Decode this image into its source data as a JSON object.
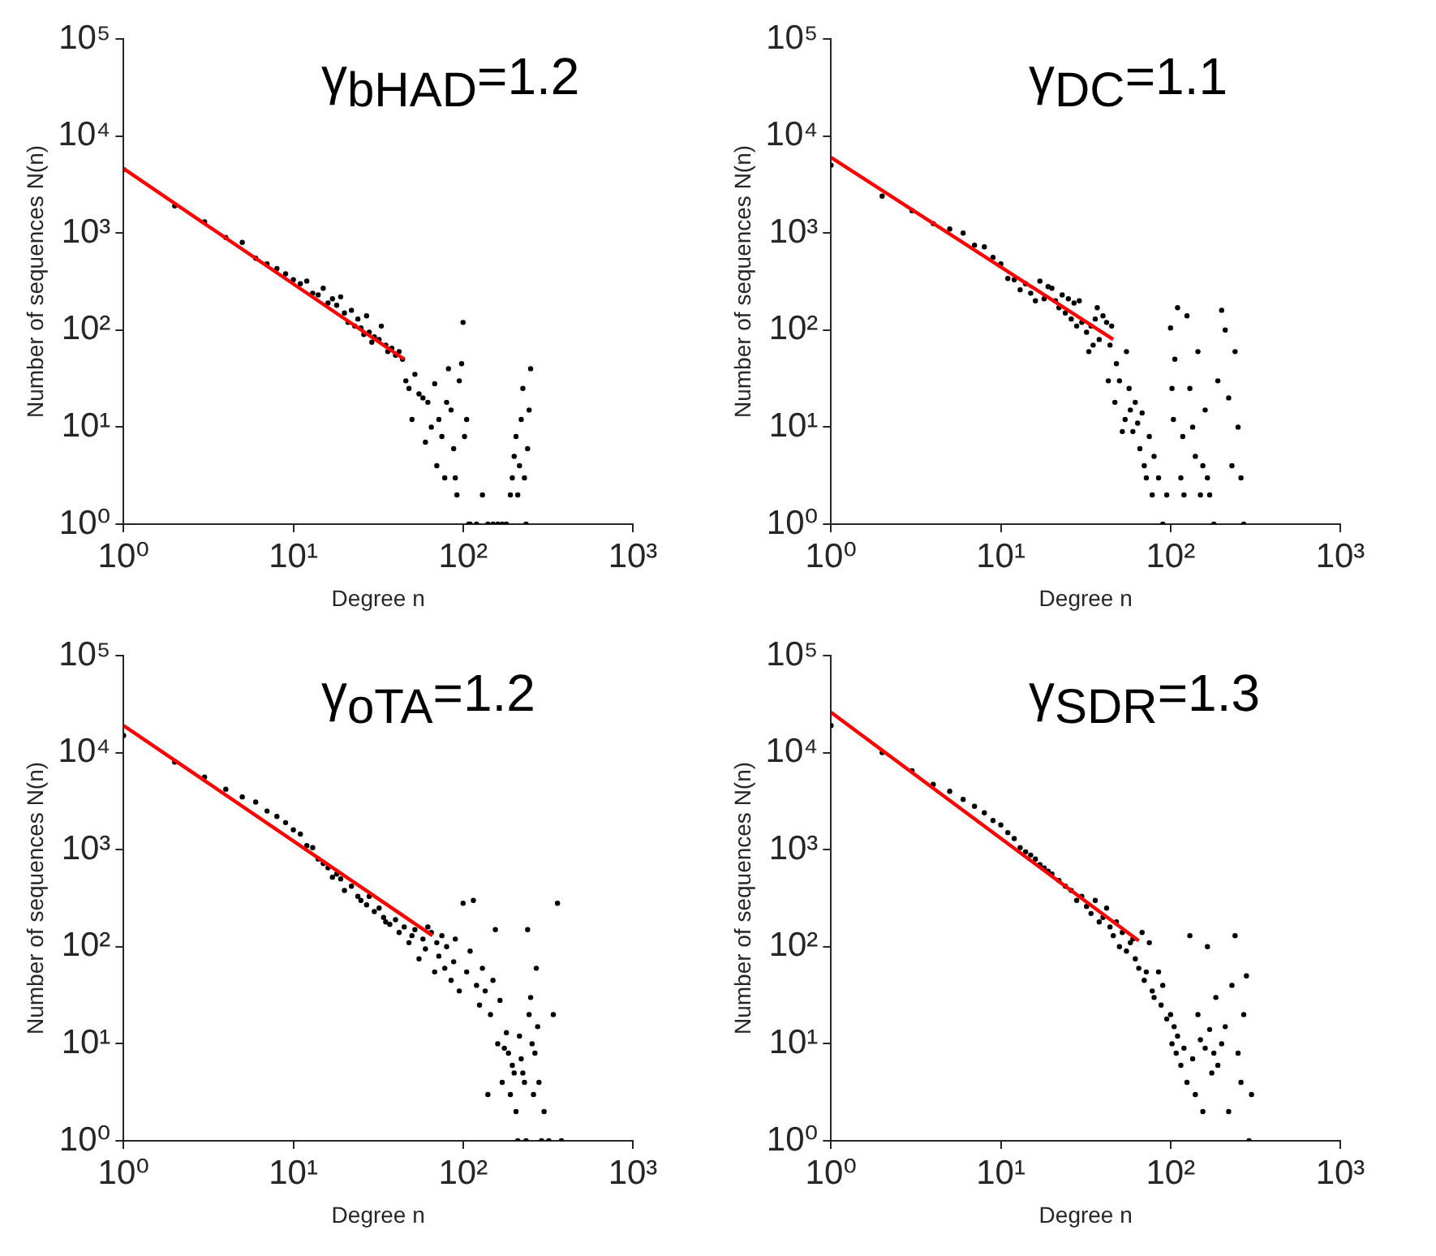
{
  "chart_data": [
    {
      "type": "scatter",
      "annotations": [
        "γ$_{bHAD}$=1.2"
      ],
      "xlabel": "Degree n",
      "ylabel": "Number of sequences N(n)",
      "log": "xy",
      "xlim": [
        1,
        1000
      ],
      "ylim": [
        1,
        100000
      ],
      "xticks": [
        {
          "value": 1,
          "label": "10⁰"
        },
        {
          "value": 10,
          "label": "10¹"
        },
        {
          "value": 100,
          "label": "10²"
        },
        {
          "value": 1000,
          "label": "10³"
        }
      ],
      "yticks": [
        {
          "value": 1,
          "label": "10⁰"
        },
        {
          "value": 10,
          "label": "10¹"
        },
        {
          "value": 100,
          "label": "10²"
        },
        {
          "value": 1000,
          "label": "10³"
        },
        {
          "value": 10000,
          "label": "10⁴"
        },
        {
          "value": 100000,
          "label": "10⁵"
        }
      ],
      "grid": false,
      "legend": false,
      "marker": "circle",
      "series": [
        {
          "color": "#000000",
          "x": [
            1,
            2,
            3,
            4,
            5,
            6,
            7,
            8,
            9,
            10,
            11,
            12,
            13,
            14,
            15,
            16,
            17,
            18,
            19,
            20,
            21,
            22,
            23,
            24,
            25,
            26,
            27,
            28,
            29,
            30,
            32,
            33,
            35,
            36,
            38,
            40,
            42,
            44,
            46,
            48,
            50,
            52,
            55,
            58,
            60,
            62,
            65,
            68,
            70,
            72,
            75,
            78,
            80,
            82,
            85,
            88,
            90,
            92,
            95,
            98,
            100,
            102,
            105,
            108,
            110,
            120,
            130,
            140,
            150,
            160,
            170,
            180,
            190,
            195,
            200,
            205,
            210,
            215,
            220,
            225,
            230,
            235,
            240,
            245,
            250
          ],
          "values": [
            4500,
            1900,
            1300,
            900,
            800,
            550,
            480,
            430,
            380,
            330,
            300,
            320,
            240,
            230,
            270,
            190,
            210,
            180,
            220,
            150,
            120,
            160,
            110,
            130,
            105,
            90,
            140,
            95,
            75,
            85,
            80,
            110,
            70,
            60,
            65,
            55,
            60,
            50,
            30,
            25,
            12,
            35,
            22,
            20,
            7,
            18,
            10,
            28,
            4,
            12,
            8,
            3,
            18,
            40,
            15,
            6,
            3,
            2,
            30,
            45,
            120,
            8,
            12,
            1,
            1,
            1,
            2,
            1,
            1,
            1,
            1,
            1,
            2,
            3,
            5,
            8,
            2,
            4,
            12,
            25,
            3,
            1,
            6,
            15,
            40
          ]
        },
        {
          "type": "line",
          "marker": "none",
          "color": "#ff0000",
          "x": [
            1,
            45
          ],
          "values": [
            4600,
            50
          ]
        }
      ]
    },
    {
      "type": "scatter",
      "annotations": [
        "γ$_{DC}$=1.1"
      ],
      "xlabel": "Degree n",
      "ylabel": "Number of sequences N(n)",
      "log": "xy",
      "xlim": [
        1,
        1000
      ],
      "ylim": [
        1,
        100000
      ],
      "xticks": [
        {
          "value": 1,
          "label": "10⁰"
        },
        {
          "value": 10,
          "label": "10¹"
        },
        {
          "value": 100,
          "label": "10²"
        },
        {
          "value": 1000,
          "label": "10³"
        }
      ],
      "yticks": [
        {
          "value": 1,
          "label": "10⁰"
        },
        {
          "value": 10,
          "label": "10¹"
        },
        {
          "value": 100,
          "label": "10²"
        },
        {
          "value": 1000,
          "label": "10³"
        },
        {
          "value": 10000,
          "label": "10⁴"
        },
        {
          "value": 100000,
          "label": "10⁵"
        }
      ],
      "grid": false,
      "legend": false,
      "marker": "circle",
      "series": [
        {
          "color": "#000000",
          "x": [
            1,
            2,
            3,
            4,
            5,
            6,
            7,
            8,
            9,
            10,
            11,
            12,
            13,
            14,
            15,
            16,
            17,
            18,
            19,
            20,
            21,
            22,
            23,
            24,
            25,
            26,
            27,
            28,
            29,
            30,
            32,
            33,
            34,
            35,
            36,
            37,
            38,
            40,
            42,
            43,
            44,
            45,
            47,
            48,
            50,
            52,
            54,
            55,
            57,
            58,
            60,
            62,
            64,
            66,
            68,
            70,
            72,
            75,
            78,
            80,
            85,
            90,
            95,
            100,
            102,
            104,
            106,
            110,
            115,
            118,
            120,
            125,
            130,
            135,
            140,
            145,
            150,
            155,
            160,
            165,
            170,
            180,
            190,
            200,
            210,
            220,
            230,
            240,
            250,
            260,
            270
          ],
          "values": [
            5000,
            2400,
            1700,
            1250,
            1100,
            1000,
            750,
            720,
            560,
            480,
            340,
            330,
            260,
            300,
            240,
            200,
            320,
            210,
            280,
            270,
            200,
            170,
            230,
            150,
            210,
            130,
            190,
            110,
            200,
            120,
            95,
            60,
            110,
            70,
            130,
            170,
            80,
            140,
            120,
            30,
            70,
            110,
            18,
            45,
            30,
            9,
            12,
            60,
            25,
            15,
            9,
            18,
            11,
            6,
            14,
            4,
            3,
            8,
            2,
            5,
            3,
            1,
            2,
            105,
            25,
            12,
            50,
            170,
            3,
            8,
            2,
            140,
            25,
            10,
            5,
            60,
            2,
            4,
            15,
            3,
            2,
            1,
            30,
            160,
            100,
            20,
            4,
            60,
            10,
            3,
            1
          ]
        },
        {
          "type": "line",
          "marker": "none",
          "color": "#ff0000",
          "x": [
            1,
            46
          ],
          "values": [
            6000,
            80
          ]
        }
      ]
    },
    {
      "type": "scatter",
      "annotations": [
        "γ$_{oTA}$=1.2"
      ],
      "xlabel": "Degree n",
      "ylabel": "Number of sequences N(n)",
      "log": "xy",
      "xlim": [
        1,
        1000
      ],
      "ylim": [
        1,
        100000
      ],
      "xticks": [
        {
          "value": 1,
          "label": "10⁰"
        },
        {
          "value": 10,
          "label": "10¹"
        },
        {
          "value": 100,
          "label": "10²"
        },
        {
          "value": 1000,
          "label": "10³"
        }
      ],
      "yticks": [
        {
          "value": 1,
          "label": "10⁰"
        },
        {
          "value": 10,
          "label": "10¹"
        },
        {
          "value": 100,
          "label": "10²"
        },
        {
          "value": 1000,
          "label": "10³"
        },
        {
          "value": 10000,
          "label": "10⁴"
        },
        {
          "value": 100000,
          "label": "10⁵"
        }
      ],
      "grid": false,
      "legend": false,
      "marker": "circle",
      "series": [
        {
          "color": "#000000",
          "x": [
            1,
            2,
            3,
            4,
            5,
            6,
            7,
            8,
            9,
            10,
            11,
            12,
            13,
            14,
            15,
            16,
            17,
            18,
            19,
            20,
            22,
            24,
            25,
            27,
            28,
            30,
            32,
            34,
            35,
            37,
            40,
            42,
            45,
            48,
            50,
            52,
            55,
            58,
            60,
            62,
            65,
            68,
            70,
            72,
            75,
            78,
            80,
            85,
            88,
            90,
            95,
            100,
            105,
            110,
            115,
            120,
            125,
            130,
            135,
            140,
            145,
            150,
            155,
            160,
            165,
            170,
            175,
            180,
            185,
            190,
            195,
            200,
            205,
            210,
            215,
            220,
            225,
            230,
            235,
            240,
            245,
            250,
            255,
            260,
            265,
            270,
            275,
            280,
            290,
            300,
            320,
            340,
            360,
            380
          ],
          "values": [
            15000,
            8000,
            5600,
            4200,
            3500,
            3100,
            2500,
            2200,
            1900,
            1600,
            1450,
            1100,
            1050,
            800,
            720,
            650,
            520,
            560,
            500,
            380,
            420,
            330,
            300,
            270,
            330,
            230,
            250,
            200,
            180,
            170,
            190,
            140,
            160,
            110,
            130,
            150,
            75,
            120,
            95,
            160,
            140,
            55,
            110,
            80,
            130,
            60,
            100,
            45,
            70,
            120,
            35,
            280,
            55,
            90,
            300,
            40,
            25,
            60,
            35,
            3,
            20,
            45,
            150,
            10,
            28,
            4,
            9,
            13,
            8,
            3,
            6,
            5,
            2,
            1,
            12,
            7,
            5,
            4,
            1,
            150,
            20,
            30,
            10,
            3,
            8,
            60,
            15,
            4,
            1,
            2,
            1,
            20,
            280,
            1
          ]
        },
        {
          "type": "line",
          "marker": "none",
          "color": "#ff0000",
          "x": [
            1,
            66
          ],
          "values": [
            19000,
            130
          ]
        }
      ]
    },
    {
      "type": "scatter",
      "annotations": [
        "γ$_{SDR}$=1.3"
      ],
      "xlabel": "Degree n",
      "ylabel": "Number of sequences N(n)",
      "log": "xy",
      "xlim": [
        1,
        1000
      ],
      "ylim": [
        1,
        100000
      ],
      "xticks": [
        {
          "value": 1,
          "label": "10⁰"
        },
        {
          "value": 10,
          "label": "10¹"
        },
        {
          "value": 100,
          "label": "10²"
        },
        {
          "value": 1000,
          "label": "10³"
        }
      ],
      "yticks": [
        {
          "value": 1,
          "label": "10⁰"
        },
        {
          "value": 10,
          "label": "10¹"
        },
        {
          "value": 100,
          "label": "10²"
        },
        {
          "value": 1000,
          "label": "10³"
        },
        {
          "value": 10000,
          "label": "10⁴"
        },
        {
          "value": 100000,
          "label": "10⁵"
        }
      ],
      "grid": false,
      "legend": false,
      "marker": "circle",
      "series": [
        {
          "color": "#000000",
          "x": [
            1,
            2,
            3,
            4,
            5,
            6,
            7,
            8,
            9,
            10,
            11,
            12,
            13,
            14,
            15,
            16,
            17,
            18,
            19,
            20,
            22,
            24,
            26,
            28,
            30,
            32,
            34,
            36,
            38,
            40,
            42,
            44,
            46,
            48,
            50,
            52,
            55,
            58,
            60,
            62,
            65,
            68,
            70,
            72,
            75,
            78,
            80,
            85,
            88,
            90,
            95,
            100,
            102,
            105,
            108,
            110,
            115,
            120,
            125,
            130,
            135,
            140,
            145,
            150,
            155,
            160,
            165,
            170,
            175,
            180,
            185,
            190,
            200,
            210,
            220,
            230,
            240,
            250,
            260,
            270,
            280,
            290,
            300
          ],
          "values": [
            19000,
            10000,
            6500,
            4700,
            4000,
            3300,
            2800,
            2400,
            2000,
            1800,
            1500,
            1300,
            1050,
            950,
            880,
            800,
            700,
            650,
            600,
            560,
            480,
            420,
            380,
            300,
            330,
            260,
            220,
            300,
            180,
            200,
            250,
            160,
            130,
            180,
            100,
            140,
            90,
            110,
            120,
            75,
            60,
            140,
            45,
            55,
            110,
            35,
            30,
            55,
            25,
            40,
            18,
            20,
            10,
            15,
            8,
            12,
            6,
            9,
            4,
            130,
            7,
            3,
            20,
            11,
            2,
            9,
            100,
            14,
            5,
            8,
            30,
            6,
            10,
            15,
            2,
            40,
            130,
            8,
            4,
            20,
            50,
            1,
            3
          ]
        },
        {
          "type": "line",
          "marker": "none",
          "color": "#ff0000",
          "x": [
            1,
            65
          ],
          "values": [
            26000,
            115
          ]
        }
      ]
    }
  ]
}
